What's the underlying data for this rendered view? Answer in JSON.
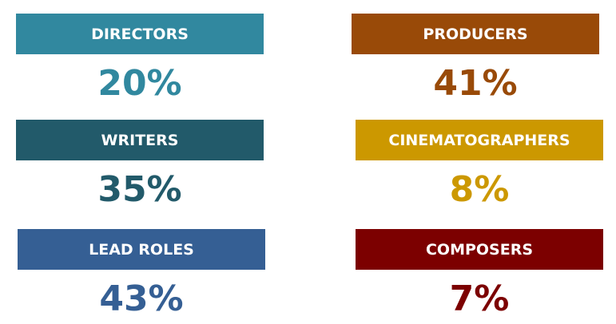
{
  "items": [
    {
      "label": "DIRECTORS",
      "value": "20%",
      "color": "#31889f"
    },
    {
      "label": "PRODUCERS",
      "value": "41%",
      "color": "#994a08"
    },
    {
      "label": "WRITERS",
      "value": "35%",
      "color": "#225a6a"
    },
    {
      "label": "CINEMATOGRAPHERS",
      "value": "8%",
      "color": "#cc9800"
    },
    {
      "label": "LEAD ROLES",
      "value": "43%",
      "color": "#355f94"
    },
    {
      "label": "COMPOSERS",
      "value": "7%",
      "color": "#7c0000"
    }
  ]
}
